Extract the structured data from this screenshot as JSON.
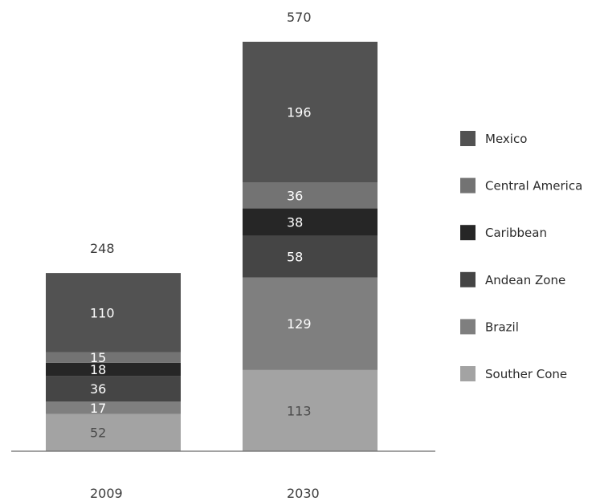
{
  "chart_data": {
    "type": "bar",
    "stacked": true,
    "categories": [
      "2009",
      "2030"
    ],
    "totals": [
      "248",
      "570"
    ],
    "series": [
      {
        "name": "Southern Cone",
        "legend_label": "Souther Cone",
        "color": "#a3a3a3",
        "label_color": "#4a4a4a",
        "values": [
          52,
          113
        ]
      },
      {
        "name": "Brazil",
        "legend_label": "Brazil",
        "color": "#7f7f7f",
        "label_color": "#ffffff",
        "values": [
          17,
          129
        ]
      },
      {
        "name": "Andean Zone",
        "legend_label": "Andean Zone",
        "color": "#454545",
        "label_color": "#ffffff",
        "values": [
          36,
          58
        ]
      },
      {
        "name": "Caribbean",
        "legend_label": "Caribbean",
        "color": "#262626",
        "label_color": "#ffffff",
        "values": [
          18,
          38
        ]
      },
      {
        "name": "Central America",
        "legend_label": "Central America",
        "color": "#737373",
        "label_color": "#ffffff",
        "values": [
          15,
          36
        ]
      },
      {
        "name": "Mexico",
        "legend_label": "Mexico",
        "color": "#525252",
        "label_color": "#ffffff",
        "values": [
          110,
          196
        ]
      }
    ],
    "legend_order": [
      "Mexico",
      "Central America",
      "Caribbean",
      "Andean Zone",
      "Brazil",
      "Southern Cone"
    ],
    "legend_position": "right",
    "ylim": [
      0,
      570
    ],
    "grid": false
  }
}
